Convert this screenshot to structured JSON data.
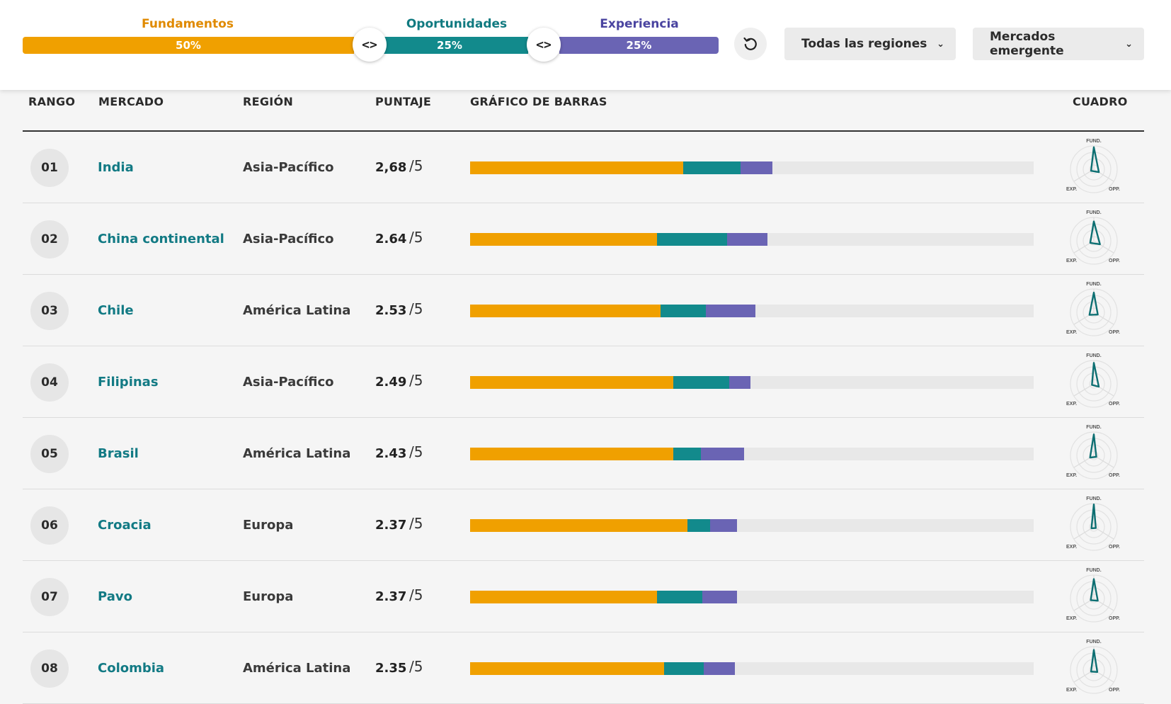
{
  "weights": {
    "fundamentos": {
      "label": "Fundamentos",
      "pct": "50%",
      "value": 50,
      "color": "#f0a000",
      "title_color": "#e08a00"
    },
    "oportunidades": {
      "label": "Oportunidades",
      "pct": "25%",
      "value": 25,
      "color": "#128a8c",
      "title_color": "#107a80"
    },
    "experiencia": {
      "label": "Experiencia",
      "pct": "25%",
      "value": 25,
      "color": "#6a64b4",
      "title_color": "#4a44a0"
    }
  },
  "icons": {
    "handle": "chevrons-left-right-icon",
    "reset": "reset-icon",
    "chevron": "chevron-down-icon"
  },
  "filters": {
    "region": {
      "label": "Todas las regiones"
    },
    "market_type": {
      "label": "Mercados emergente"
    }
  },
  "table": {
    "headers": {
      "rank": "RANGO",
      "market": "MERCADO",
      "region": "REGIÓN",
      "score": "PUNTAJE",
      "bars": "GRÁFICO DE BARRAS",
      "chart": "CUADRO"
    },
    "radar_labels": {
      "top": "FUND.",
      "left": "EXP.",
      "right": "OPP."
    },
    "rows": [
      {
        "rank": "01",
        "market": "India",
        "region": "Asia-Pacífico",
        "score": "2,68",
        "outof": "/5",
        "fund": 1.89,
        "opp": 0.51,
        "exp": 0.28
      },
      {
        "rank": "02",
        "market": "China continental",
        "region": "Asia-Pacífico",
        "score": "2.64",
        "outof": "/5",
        "fund": 1.66,
        "opp": 0.62,
        "exp": 0.36
      },
      {
        "rank": "03",
        "market": "Chile",
        "region": "América Latina",
        "score": "2.53",
        "outof": "/5",
        "fund": 1.69,
        "opp": 0.4,
        "exp": 0.44
      },
      {
        "rank": "04",
        "market": "Filipinas",
        "region": "Asia-Pacífico",
        "score": "2.49",
        "outof": "/5",
        "fund": 1.8,
        "opp": 0.5,
        "exp": 0.19
      },
      {
        "rank": "05",
        "market": "Brasil",
        "region": "América Latina",
        "score": "2.43",
        "outof": "/5",
        "fund": 1.8,
        "opp": 0.25,
        "exp": 0.38
      },
      {
        "rank": "06",
        "market": "Croacia",
        "region": "Europa",
        "score": "2.37",
        "outof": "/5",
        "fund": 1.93,
        "opp": 0.2,
        "exp": 0.24
      },
      {
        "rank": "07",
        "market": "Pavo",
        "region": "Europa",
        "score": "2.37",
        "outof": "/5",
        "fund": 1.66,
        "opp": 0.4,
        "exp": 0.31
      },
      {
        "rank": "08",
        "market": "Colombia",
        "region": "América Latina",
        "score": "2.35",
        "outof": "/5",
        "fund": 1.72,
        "opp": 0.35,
        "exp": 0.28
      }
    ]
  },
  "chart_data": {
    "type": "bar",
    "stacked": true,
    "xlim": [
      0,
      5
    ],
    "categories": [
      "India",
      "China continental",
      "Chile",
      "Filipinas",
      "Brasil",
      "Croacia",
      "Pavo",
      "Colombia"
    ],
    "series": [
      {
        "name": "Fundamentos",
        "values": [
          1.89,
          1.66,
          1.69,
          1.8,
          1.8,
          1.93,
          1.66,
          1.72
        ]
      },
      {
        "name": "Oportunidades",
        "values": [
          0.51,
          0.62,
          0.4,
          0.5,
          0.25,
          0.2,
          0.4,
          0.35
        ]
      },
      {
        "name": "Experiencia",
        "values": [
          0.28,
          0.36,
          0.44,
          0.19,
          0.38,
          0.24,
          0.31,
          0.28
        ]
      }
    ]
  }
}
